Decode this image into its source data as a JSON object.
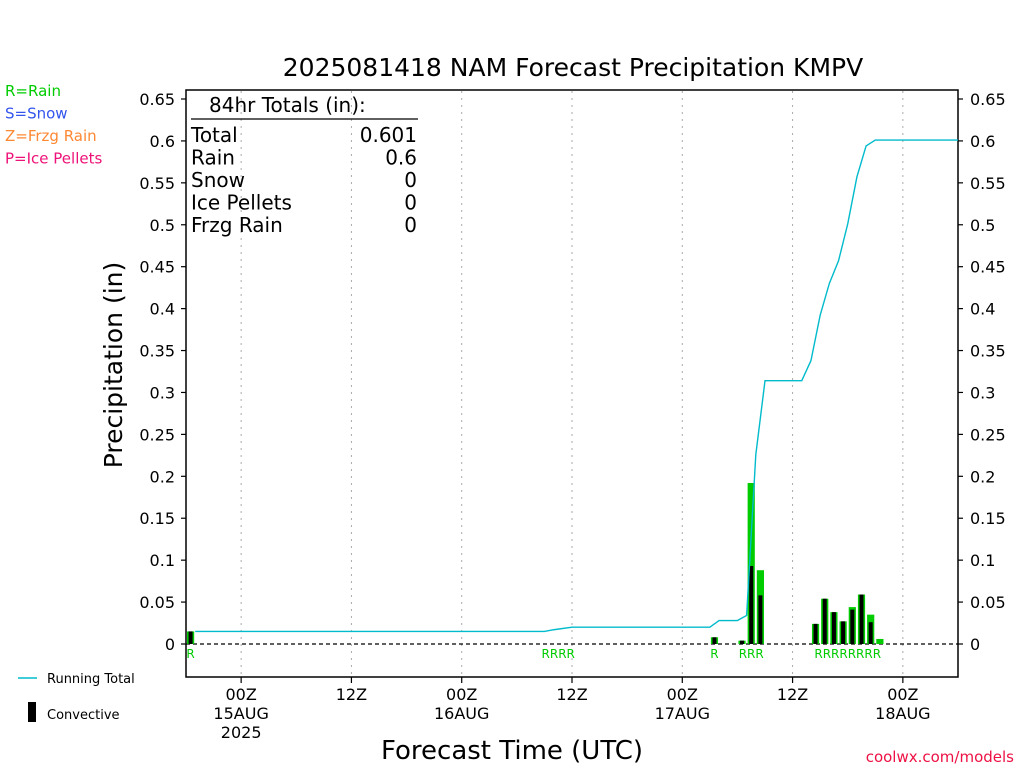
{
  "chart_data": {
    "type": "bar",
    "title": "2025081418 NAM Forecast Precipitation KMPV",
    "ylabel": "Precipitation (in)",
    "xlabel": "Forecast Time (UTC)",
    "ylim": [
      0,
      0.65
    ],
    "yticks": [
      "0",
      "0.05",
      "0.1",
      "0.15",
      "0.2",
      "0.25",
      "0.3",
      "0.35",
      "0.4",
      "0.45",
      "0.5",
      "0.55",
      "0.6",
      "0.65"
    ],
    "x_unit": "forecast hour",
    "xlim": [
      0,
      84
    ],
    "xticks": [
      {
        "hour": 6,
        "l1": "00Z",
        "l2": "15AUG",
        "l3": "2025"
      },
      {
        "hour": 18,
        "l1": "12Z",
        "l2": "",
        "l3": ""
      },
      {
        "hour": 30,
        "l1": "00Z",
        "l2": "16AUG",
        "l3": ""
      },
      {
        "hour": 42,
        "l1": "12Z",
        "l2": "",
        "l3": ""
      },
      {
        "hour": 54,
        "l1": "00Z",
        "l2": "17AUG",
        "l3": ""
      },
      {
        "hour": 66,
        "l1": "12Z",
        "l2": "",
        "l3": ""
      },
      {
        "hour": 78,
        "l1": "00Z",
        "l2": "18AUG",
        "l3": ""
      }
    ],
    "grid": "vertical dotted at tick hours",
    "totals": {
      "header": "84hr Totals (in):",
      "rows": [
        {
          "label": "Total",
          "value": "0.601"
        },
        {
          "label": "Rain",
          "value": "0.6"
        },
        {
          "label": "Snow",
          "value": "0"
        },
        {
          "label": "Ice Pellets",
          "value": "0"
        },
        {
          "label": "Frzg Rain",
          "value": "0"
        }
      ]
    },
    "type_legend": [
      {
        "label": "R=Rain",
        "color": "#00cc00"
      },
      {
        "label": "S=Snow",
        "color": "#3355ee"
      },
      {
        "label": "Z=Frzg Rain",
        "color": "#ff8833"
      },
      {
        "label": "P=Ice Pellets",
        "color": "#ee1177"
      }
    ],
    "series_legend": [
      {
        "label": "Running Total",
        "color": "#00bbcc",
        "kind": "line"
      },
      {
        "label": "Convective",
        "color": "#000000",
        "kind": "bar"
      }
    ],
    "precip_bars": [
      {
        "hour": 1,
        "total": 0.015,
        "convective": 0.015
      },
      {
        "hour": 58,
        "total": 0.008,
        "convective": 0.008
      },
      {
        "hour": 61,
        "total": 0.004,
        "convective": 0.004
      },
      {
        "hour": 62,
        "total": 0.192,
        "convective": 0.093
      },
      {
        "hour": 63,
        "total": 0.088,
        "convective": 0.058
      },
      {
        "hour": 69,
        "total": 0.024,
        "convective": 0.024
      },
      {
        "hour": 70,
        "total": 0.054,
        "convective": 0.054
      },
      {
        "hour": 71,
        "total": 0.038,
        "convective": 0.038
      },
      {
        "hour": 72,
        "total": 0.027,
        "convective": 0.027
      },
      {
        "hour": 73,
        "total": 0.044,
        "convective": 0.041
      },
      {
        "hour": 74,
        "total": 0.059,
        "convective": 0.059
      },
      {
        "hour": 75,
        "total": 0.035,
        "convective": 0.026
      },
      {
        "hour": 76,
        "total": 0.006,
        "convective": 0.0
      }
    ],
    "running_total": [
      [
        1,
        0.015
      ],
      [
        2,
        0.015
      ],
      [
        39,
        0.015
      ],
      [
        40,
        0.017
      ],
      [
        42,
        0.02
      ],
      [
        57,
        0.02
      ],
      [
        58,
        0.028
      ],
      [
        60,
        0.028
      ],
      [
        61,
        0.034
      ],
      [
        62,
        0.226
      ],
      [
        63,
        0.314
      ],
      [
        67,
        0.314
      ],
      [
        68,
        0.338
      ],
      [
        69,
        0.392
      ],
      [
        70,
        0.43
      ],
      [
        71,
        0.457
      ],
      [
        72,
        0.501
      ],
      [
        73,
        0.557
      ],
      [
        74,
        0.594
      ],
      [
        75,
        0.601
      ],
      [
        84,
        0.601
      ]
    ],
    "ptype_markers": [
      {
        "hour": 1,
        "text": "R"
      },
      {
        "hour": 41,
        "text": "RRRR"
      },
      {
        "hour": 58,
        "text": "R"
      },
      {
        "hour": 62,
        "text": "RRR"
      },
      {
        "hour": 72.5,
        "text": "RRRRRRRR"
      }
    ]
  },
  "footer": {
    "credit": "coolwx.com/models",
    "credit_color": "#ee1144"
  }
}
